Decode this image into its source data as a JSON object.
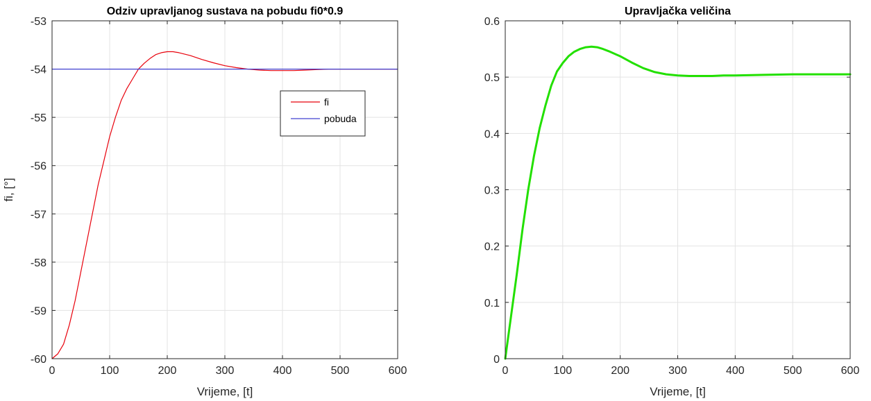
{
  "chart_data": [
    {
      "type": "line",
      "title": "Odziv upravljanog sustava na pobudu fi0*0.9",
      "xlabel": "Vrijeme, [t]",
      "ylabel": "fi, [°]",
      "xlim": [
        0,
        600
      ],
      "ylim": [
        -60,
        -53
      ],
      "xticks": [
        "0",
        "100",
        "200",
        "300",
        "400",
        "500",
        "600"
      ],
      "yticks": [
        "-60",
        "-59",
        "-58",
        "-57",
        "-56",
        "-55",
        "-54",
        "-53"
      ],
      "grid": true,
      "legend": "top-right",
      "series": [
        {
          "name": "fi",
          "color": "#e8000b",
          "x": [
            0,
            10,
            20,
            30,
            40,
            50,
            60,
            70,
            80,
            90,
            100,
            110,
            120,
            130,
            140,
            150,
            160,
            170,
            180,
            190,
            200,
            210,
            220,
            240,
            260,
            280,
            300,
            320,
            340,
            360,
            380,
            400,
            420,
            440,
            460,
            480,
            500,
            550,
            600
          ],
          "y": [
            -60,
            -59.9,
            -59.7,
            -59.3,
            -58.8,
            -58.2,
            -57.6,
            -57.0,
            -56.4,
            -55.9,
            -55.4,
            -55.0,
            -54.65,
            -54.4,
            -54.2,
            -54.0,
            -53.88,
            -53.78,
            -53.7,
            -53.66,
            -53.64,
            -53.64,
            -53.66,
            -53.72,
            -53.8,
            -53.87,
            -53.93,
            -53.97,
            -54.0,
            -54.02,
            -54.03,
            -54.03,
            -54.03,
            -54.02,
            -54.01,
            -54.0,
            -54.0,
            -54.0,
            -54.0
          ]
        },
        {
          "name": "pobuda",
          "color": "#4040d0",
          "x": [
            0,
            600
          ],
          "y": [
            -54,
            -54
          ]
        }
      ]
    },
    {
      "type": "line",
      "title": "Upravljačka veličina",
      "xlabel": "Vrijeme, [t]",
      "ylabel": "",
      "xlim": [
        0,
        600
      ],
      "ylim": [
        0,
        0.6
      ],
      "xticks": [
        "0",
        "100",
        "200",
        "300",
        "400",
        "500",
        "600"
      ],
      "yticks": [
        "0",
        "0.1",
        "0.2",
        "0.3",
        "0.4",
        "0.5",
        "0.6"
      ],
      "grid": true,
      "series": [
        {
          "color": "#22e000",
          "x": [
            0,
            10,
            20,
            30,
            40,
            50,
            60,
            70,
            80,
            90,
            100,
            110,
            120,
            130,
            140,
            150,
            160,
            170,
            180,
            200,
            220,
            240,
            260,
            280,
            300,
            320,
            340,
            360,
            380,
            400,
            450,
            500,
            550,
            600
          ],
          "y": [
            0,
            0.075,
            0.15,
            0.23,
            0.3,
            0.36,
            0.41,
            0.45,
            0.485,
            0.51,
            0.525,
            0.537,
            0.545,
            0.55,
            0.553,
            0.554,
            0.553,
            0.55,
            0.546,
            0.537,
            0.526,
            0.516,
            0.509,
            0.505,
            0.503,
            0.502,
            0.502,
            0.502,
            0.503,
            0.503,
            0.504,
            0.505,
            0.505,
            0.505
          ]
        }
      ]
    }
  ]
}
